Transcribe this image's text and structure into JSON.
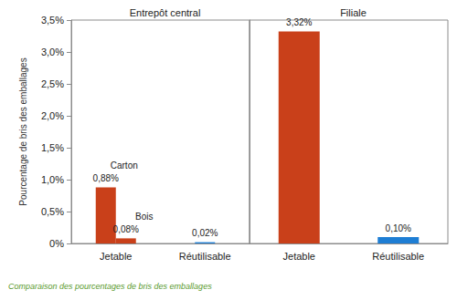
{
  "chart_data": [
    {
      "type": "bar",
      "title": "Entrepôt central",
      "ylabel": "Pourcentage de bris des emballages",
      "categories": [
        "Jetable",
        "Réutilisable"
      ],
      "series": [
        {
          "name": "Carton",
          "color": "#c9401a",
          "values": [
            0.88,
            null
          ],
          "value_labels": [
            "0,88%",
            null
          ]
        },
        {
          "name": "Bois",
          "color": "#c9401a",
          "values": [
            0.08,
            null
          ],
          "value_labels": [
            "0,08%",
            null
          ]
        },
        {
          "color": "#1e7ed4",
          "values": [
            null,
            0.02
          ],
          "value_labels": [
            null,
            "0,02%"
          ]
        }
      ],
      "ylim": [
        0,
        3.5
      ],
      "yticks": [
        {
          "value": 0,
          "label": "0%"
        },
        {
          "value": 0.5,
          "label": "0,5%"
        },
        {
          "value": 1.0,
          "label": "1,0%"
        },
        {
          "value": 1.5,
          "label": "1,5%"
        },
        {
          "value": 2.0,
          "label": "2,0%"
        },
        {
          "value": 2.5,
          "label": "2,5%"
        },
        {
          "value": 3.0,
          "label": "3,0%"
        },
        {
          "value": 3.5,
          "label": "3,5%"
        }
      ],
      "grid": false,
      "data_labels": true
    },
    {
      "type": "bar",
      "title": "Filiale",
      "categories": [
        "Jetable",
        "Réutilisable"
      ],
      "series": [
        {
          "colors": [
            "#c9401a",
            "#1e7ed4"
          ],
          "values": [
            3.32,
            0.1
          ],
          "value_labels": [
            "3,32%",
            "0,10%"
          ]
        }
      ],
      "ylim": [
        0,
        3.5
      ],
      "yticks": [
        {
          "value": 0,
          "label": "0%"
        },
        {
          "value": 0.5,
          "label": "0,5%"
        },
        {
          "value": 1.0,
          "label": "1,0%"
        },
        {
          "value": 1.5,
          "label": "1,5%"
        },
        {
          "value": 2.0,
          "label": "2,0%"
        },
        {
          "value": 2.5,
          "label": "2,5%"
        },
        {
          "value": 3.0,
          "label": "3,0%"
        },
        {
          "value": 3.5,
          "label": "3,5%"
        }
      ],
      "grid": false,
      "data_labels": true,
      "tick_labels": "x"
    }
  ],
  "caption": "Comparaison des pourcentages de bris des emballages"
}
